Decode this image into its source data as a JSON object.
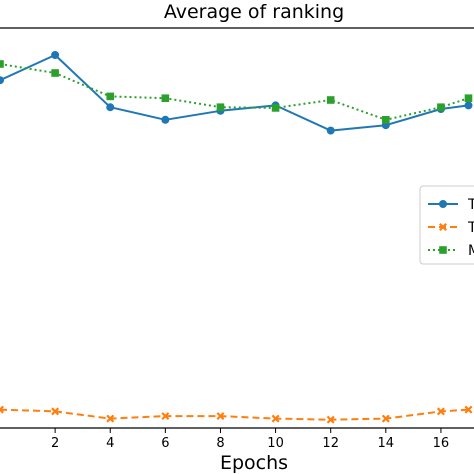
{
  "chart_data": {
    "type": "line",
    "title": "Average of ranking",
    "xlabel": "Epochs",
    "ylabel": "",
    "x_ticks": [
      2,
      4,
      6,
      8,
      10,
      12,
      14,
      16
    ],
    "xlim": [
      0,
      17.2
    ],
    "ylim": [
      0,
      100
    ],
    "grid": false,
    "legend_position": "right",
    "series": [
      {
        "marker": "circle",
        "line_style": "solid",
        "color": "#1f77b4",
        "x": [
          0,
          2,
          4,
          6,
          8,
          10,
          12,
          14,
          16,
          17
        ],
        "y": [
          85.5,
          92.5,
          78.0,
          74.5,
          77.0,
          78.5,
          71.5,
          73.0,
          77.5,
          78.5
        ]
      },
      {
        "marker": "x",
        "line_style": "dashed",
        "color": "#ff7f0e",
        "x": [
          0,
          2,
          4,
          6,
          8,
          10,
          12,
          14,
          16,
          17
        ],
        "y": [
          -6.0,
          -6.5,
          -8.5,
          -7.8,
          -7.8,
          -8.5,
          -8.8,
          -8.5,
          -6.5,
          -6.0
        ]
      },
      {
        "marker": "square",
        "line_style": "dotted",
        "color": "#2ca02c",
        "x": [
          0,
          2,
          4,
          6,
          8,
          10,
          12,
          14,
          16,
          17
        ],
        "y": [
          90.0,
          87.5,
          81.0,
          80.5,
          78.0,
          77.8,
          80.0,
          74.5,
          78.0,
          80.5
        ]
      }
    ],
    "legend": {
      "entries": [
        {
          "label": "T",
          "marker": "circle",
          "line_style": "solid",
          "color": "#1f77b4"
        },
        {
          "label": "T",
          "marker": "x",
          "line_style": "dashed",
          "color": "#ff7f0e"
        },
        {
          "label": "M",
          "marker": "square",
          "line_style": "dotted",
          "color": "#2ca02c"
        }
      ]
    }
  }
}
